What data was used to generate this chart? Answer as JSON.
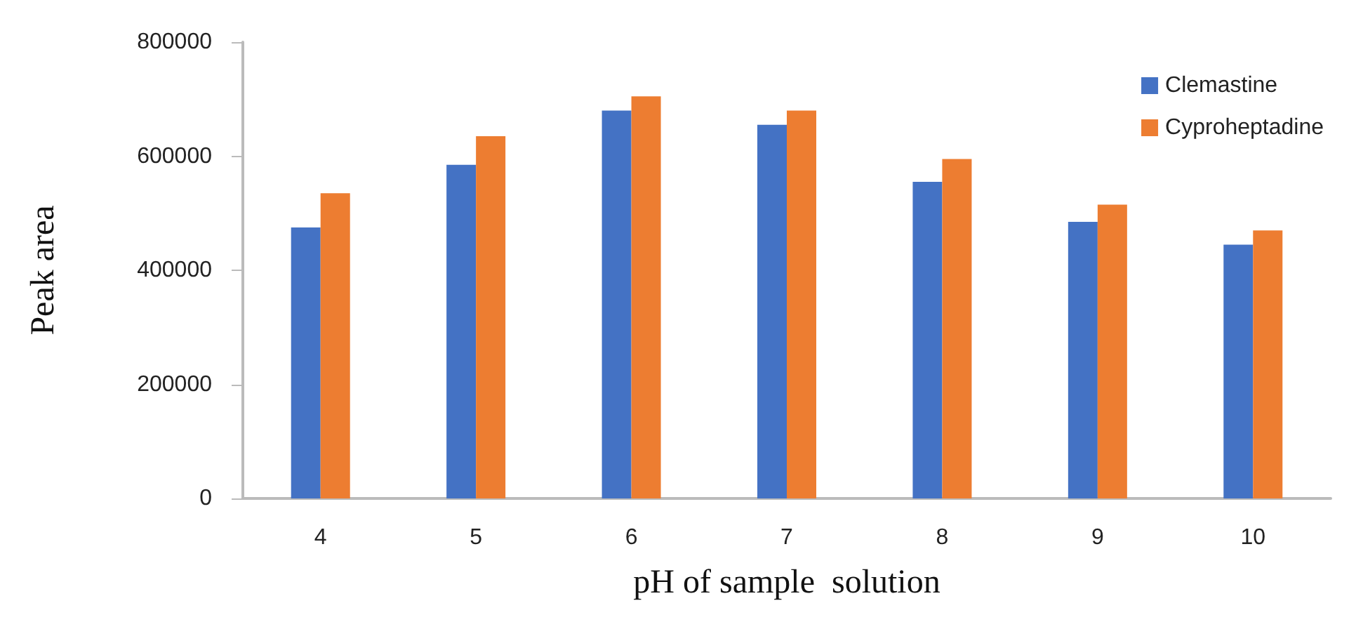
{
  "chart_data": {
    "type": "bar",
    "xlabel": "pH of sample  solution",
    "ylabel": "Peak area",
    "categories": [
      "4",
      "5",
      "6",
      "7",
      "8",
      "9",
      "10"
    ],
    "series": [
      {
        "name": "Clemastine",
        "color": "#4472c4",
        "values": [
          475000,
          585000,
          680000,
          655000,
          555000,
          485000,
          445000
        ]
      },
      {
        "name": "Cyproheptadine",
        "color": "#ed7d31",
        "values": [
          535000,
          635000,
          705000,
          680000,
          595000,
          515000,
          470000
        ]
      }
    ],
    "ylim": [
      0,
      800000
    ],
    "yticks": [
      0,
      200000,
      400000,
      600000,
      800000
    ],
    "grid": false,
    "legend": "top right"
  }
}
